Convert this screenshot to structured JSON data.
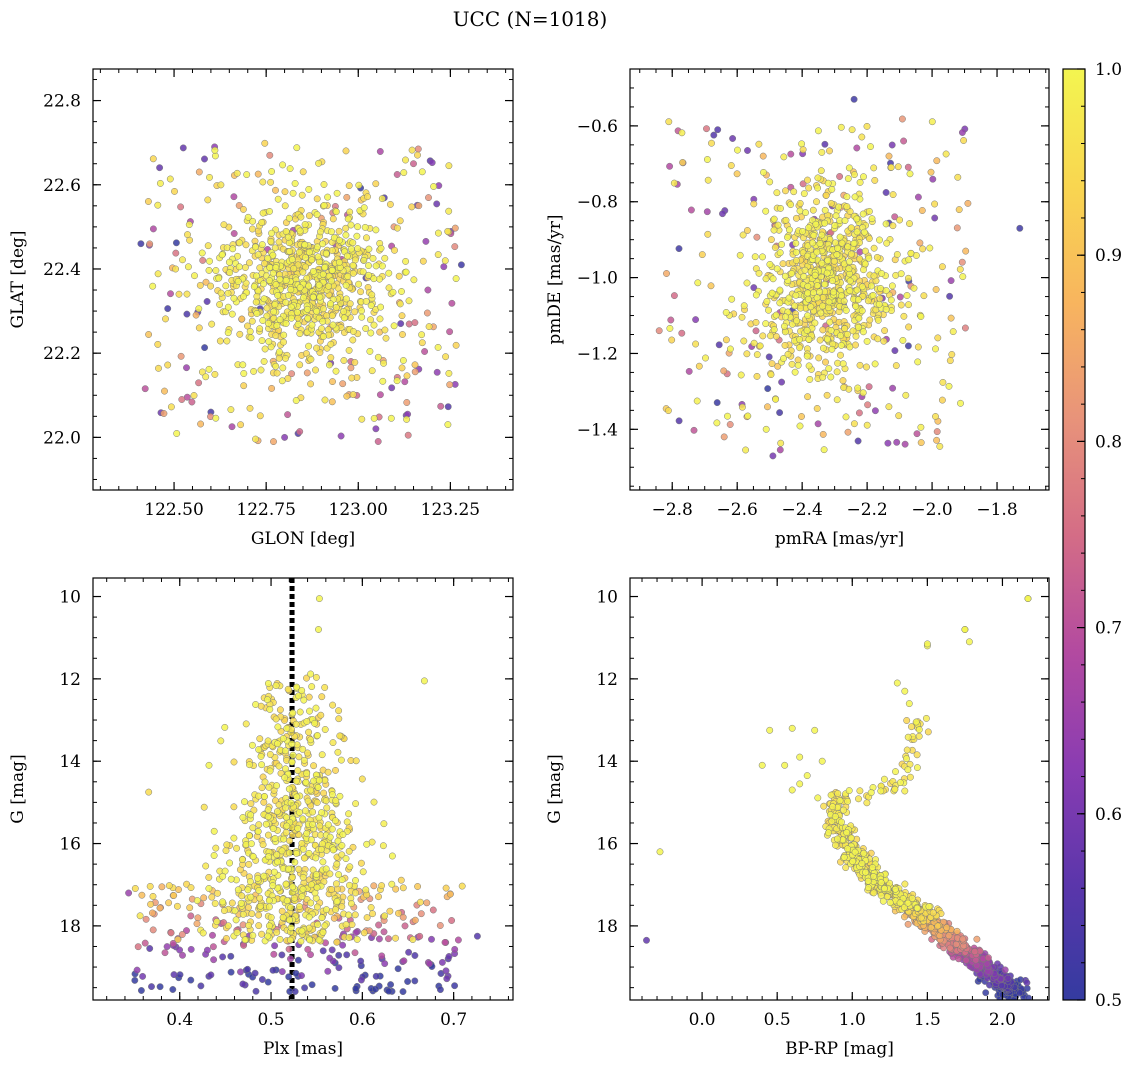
{
  "figure_title": "UCC (N=1018)",
  "colorbar": {
    "name": "colorbar",
    "range": [
      0.5,
      1.0
    ],
    "ticks": [
      0.5,
      0.6,
      0.7,
      0.8,
      0.9,
      1.0
    ],
    "tick_labels": [
      "0.5",
      "0.6",
      "0.7",
      "0.8",
      "0.9",
      "1.0"
    ],
    "colormap": "plasma",
    "colors": [
      "#343ba0",
      "#5b36ab",
      "#8a3cb2",
      "#b34aa0",
      "#d46d86",
      "#e8937a",
      "#f8b55e",
      "#f9d650",
      "#f3f550"
    ]
  },
  "marker": {
    "edge_color": "#7a7a7a",
    "opacity": 0.85
  },
  "chart_data": [
    {
      "type": "scatter",
      "name": "glon-glat",
      "title": "",
      "xlabel": "GLON [deg]",
      "ylabel": "GLAT [deg]",
      "xlim": [
        122.28,
        123.42
      ],
      "ylim": [
        21.875,
        22.875
      ],
      "xticks": [
        122.5,
        122.75,
        123.0,
        123.25
      ],
      "xtick_labels": [
        "122.50",
        "122.75",
        "123.00",
        "123.25"
      ],
      "yticks": [
        22.0,
        22.2,
        22.4,
        22.6,
        22.8
      ],
      "ytick_labels": [
        "22.0",
        "22.2",
        "22.4",
        "22.6",
        "22.8"
      ],
      "x_minor_step": 0.05,
      "y_minor_step": 0.05,
      "invert_y": false,
      "generator": {
        "seed": 11,
        "n_members": 760,
        "n_field": 258,
        "x_center": 122.85,
        "x_sigma": 0.11,
        "y_center": 22.37,
        "y_sigma": 0.09,
        "x_spread": [
          122.42,
          123.28
        ],
        "y_spread": [
          21.99,
          22.7
        ]
      },
      "points": [
        {
          "x": 122.41,
          "y": 22.46,
          "c": 0.52
        },
        {
          "x": 123.28,
          "y": 22.41,
          "c": 0.52
        },
        {
          "x": 122.8,
          "y": 22.0,
          "c": 0.62
        },
        {
          "x": 122.61,
          "y": 22.69,
          "c": 0.63
        },
        {
          "x": 122.77,
          "y": 21.99,
          "c": 0.85
        },
        {
          "x": 122.76,
          "y": 22.67,
          "c": 0.8
        },
        {
          "x": 122.6,
          "y": 22.06,
          "c": 0.53
        },
        {
          "x": 123.15,
          "y": 22.65,
          "c": 0.73
        }
      ]
    },
    {
      "type": "scatter",
      "name": "pmra-pmde",
      "title": "",
      "xlabel": "pmRA [mas/yr]",
      "ylabel": "pmDE [mas/yr]",
      "xlim": [
        -2.93,
        -1.64
      ],
      "ylim": [
        -1.56,
        -0.45
      ],
      "xticks": [
        -2.8,
        -2.6,
        -2.4,
        -2.2,
        -2.0,
        -1.8
      ],
      "xtick_labels": [
        "−2.8",
        "−2.6",
        "−2.4",
        "−2.2",
        "−2.0",
        "−1.8"
      ],
      "yticks": [
        -1.4,
        -1.2,
        -1.0,
        -0.8,
        -0.6
      ],
      "ytick_labels": [
        "−1.4",
        "−1.2",
        "−1.0",
        "−0.8",
        "−0.6"
      ],
      "x_minor_step": 0.05,
      "y_minor_step": 0.05,
      "invert_y": false,
      "generator": {
        "seed": 23,
        "n_members": 760,
        "n_field": 258,
        "x_center": -2.33,
        "x_sigma": 0.1,
        "y_center": -1.01,
        "y_sigma": 0.11,
        "x_spread": [
          -2.83,
          -1.88
        ],
        "y_spread": [
          -1.47,
          -0.58
        ]
      },
      "points": [
        {
          "x": -1.73,
          "y": -0.87,
          "c": 0.52
        },
        {
          "x": -2.24,
          "y": -0.53,
          "c": 0.52
        },
        {
          "x": -2.84,
          "y": -1.14,
          "c": 0.8
        },
        {
          "x": -2.49,
          "y": -1.47,
          "c": 0.6
        },
        {
          "x": -2.64,
          "y": -1.42,
          "c": 0.83
        },
        {
          "x": -2.66,
          "y": -0.61,
          "c": 0.55
        }
      ]
    },
    {
      "type": "scatter",
      "name": "plx-g",
      "title": "",
      "xlabel": "Plx [mas]",
      "ylabel": "G [mag]",
      "xlim": [
        0.305,
        0.765
      ],
      "ylim": [
        19.8,
        9.55
      ],
      "xticks": [
        0.4,
        0.5,
        0.6,
        0.7
      ],
      "xtick_labels": [
        "0.4",
        "0.5",
        "0.6",
        "0.7"
      ],
      "yticks": [
        10,
        12,
        14,
        16,
        18
      ],
      "ytick_labels": [
        "10",
        "12",
        "14",
        "16",
        "18"
      ],
      "x_minor_step": 0.02,
      "y_minor_step": 0.5,
      "invert_y": true,
      "reference_line": {
        "x": 0.523,
        "style": "dotted",
        "color": "#000000"
      },
      "generator": {
        "seed": 37,
        "n_members": 760,
        "n_field": 258,
        "x_center": 0.525,
        "x_sigma": 0.035,
        "y_bright": 11.7,
        "y_faint": 19.6
      },
      "points": [
        {
          "x": 0.553,
          "y": 10.05,
          "c": 1.0
        },
        {
          "x": 0.552,
          "y": 10.8,
          "c": 1.0
        },
        {
          "x": 0.668,
          "y": 12.05,
          "c": 1.0
        },
        {
          "x": 0.366,
          "y": 14.75,
          "c": 0.95
        },
        {
          "x": 0.432,
          "y": 14.1,
          "c": 1.0
        },
        {
          "x": 0.726,
          "y": 18.25,
          "c": 0.55
        },
        {
          "x": 0.344,
          "y": 17.2,
          "c": 0.65
        },
        {
          "x": 0.694,
          "y": 18.8,
          "c": 0.55
        }
      ]
    },
    {
      "type": "scatter",
      "name": "bprp-g",
      "title": "",
      "xlabel": "BP-RP [mag]",
      "ylabel": "G [mag]",
      "xlim": [
        -0.48,
        2.31
      ],
      "ylim": [
        19.8,
        9.55
      ],
      "xticks": [
        0.0,
        0.5,
        1.0,
        1.5,
        2.0
      ],
      "xtick_labels": [
        "0.0",
        "0.5",
        "1.0",
        "1.5",
        "2.0"
      ],
      "yticks": [
        10,
        12,
        14,
        16,
        18
      ],
      "ytick_labels": [
        "10",
        "12",
        "14",
        "16",
        "18"
      ],
      "x_minor_step": 0.1,
      "y_minor_step": 0.5,
      "invert_y": true,
      "generator": {
        "seed": 53,
        "n_members": 980,
        "main_sequence": [
          [
            0.86,
            14.85
          ],
          [
            0.92,
            15.6
          ],
          [
            1.0,
            16.2
          ],
          [
            1.1,
            16.7
          ],
          [
            1.25,
            17.15
          ],
          [
            1.4,
            17.6
          ],
          [
            1.55,
            18.0
          ],
          [
            1.7,
            18.5
          ],
          [
            1.85,
            18.9
          ],
          [
            2.0,
            19.4
          ],
          [
            2.1,
            19.6
          ]
        ],
        "turnoff_branch": [
          [
            0.9,
            14.85
          ],
          [
            1.15,
            14.85
          ],
          [
            1.3,
            14.6
          ],
          [
            1.4,
            13.5
          ],
          [
            1.45,
            13.0
          ]
        ],
        "giants": [
          [
            1.3,
            12.1
          ],
          [
            1.35,
            12.3
          ],
          [
            1.38,
            12.6
          ],
          [
            1.5,
            11.2
          ],
          [
            1.75,
            10.8
          ],
          [
            1.78,
            11.1
          ],
          [
            2.17,
            10.05
          ]
        ],
        "blue_stragglers": [
          [
            0.45,
            13.25
          ],
          [
            0.6,
            13.2
          ],
          [
            0.75,
            13.25
          ],
          [
            0.65,
            13.9
          ],
          [
            0.8,
            14.0
          ],
          [
            0.55,
            14.1
          ],
          [
            0.65,
            14.55
          ],
          [
            0.4,
            14.1
          ],
          [
            0.7,
            14.35
          ],
          [
            0.6,
            14.7
          ]
        ]
      },
      "points": [
        {
          "x": 2.17,
          "y": 10.05,
          "c": 1.0
        },
        {
          "x": -0.37,
          "y": 18.35,
          "c": 0.57
        },
        {
          "x": -0.28,
          "y": 16.2,
          "c": 1.0
        },
        {
          "x": 1.75,
          "y": 10.8,
          "c": 1.0
        },
        {
          "x": 1.5,
          "y": 11.15,
          "c": 1.0
        }
      ]
    }
  ]
}
